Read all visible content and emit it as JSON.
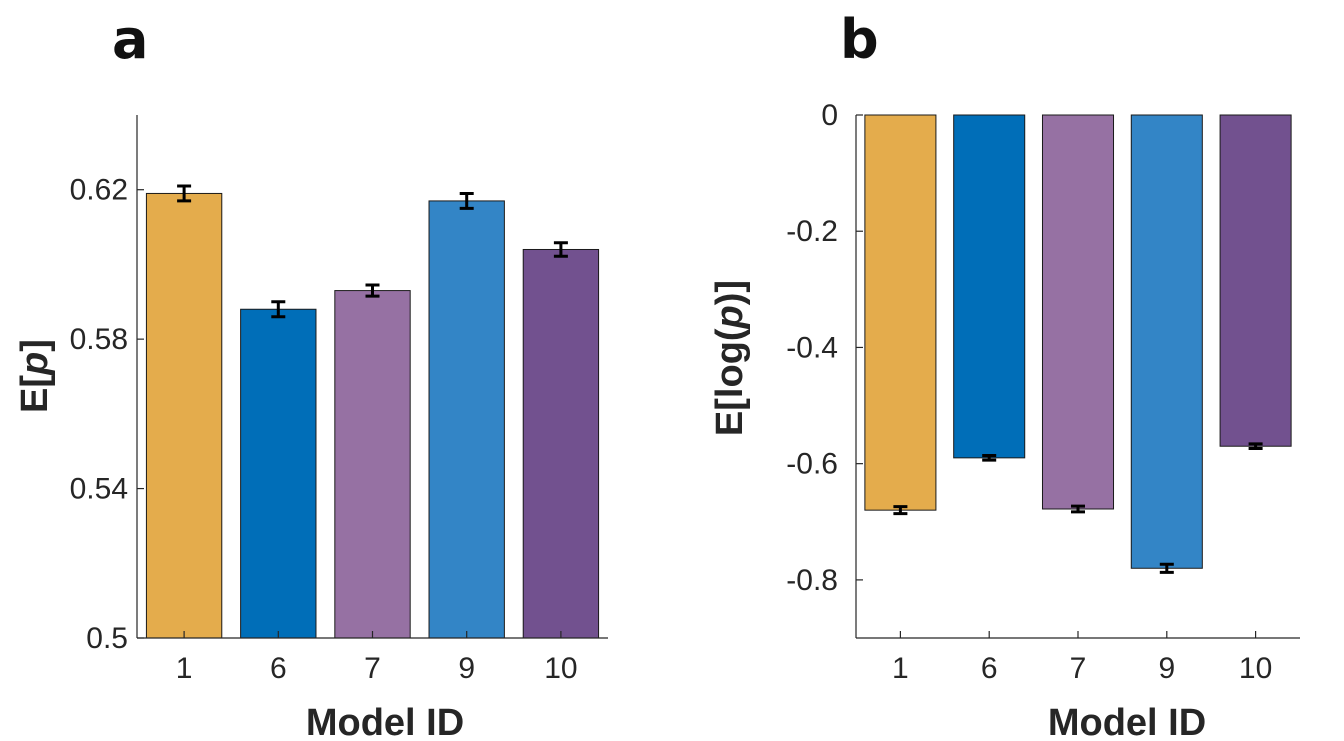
{
  "chart_data": [
    {
      "type": "bar",
      "panel_label": "a",
      "categories": [
        "1",
        "6",
        "7",
        "9",
        "10"
      ],
      "values": [
        0.619,
        0.588,
        0.593,
        0.617,
        0.604
      ],
      "errors": [
        0.002,
        0.002,
        0.0015,
        0.002,
        0.0018
      ],
      "bar_colors": [
        "#E4AC4C",
        "#006EB8",
        "#9671A3",
        "#3385C6",
        "#72518F"
      ],
      "xlabel": "Model ID",
      "ylabel": "E[p]",
      "ylabel_parts": [
        "E[",
        "p",
        "]"
      ],
      "ylim": [
        0.5,
        0.64
      ],
      "yticks": [
        "0.5",
        "0.54",
        "0.58",
        "0.62"
      ],
      "grid": false
    },
    {
      "type": "bar",
      "panel_label": "b",
      "categories": [
        "1",
        "6",
        "7",
        "9",
        "10"
      ],
      "values": [
        -0.68,
        -0.59,
        -0.678,
        -0.78,
        -0.57
      ],
      "errors": [
        0.006,
        0.004,
        0.005,
        0.007,
        0.004
      ],
      "bar_colors": [
        "#E4AC4C",
        "#006EB8",
        "#9671A3",
        "#3385C6",
        "#72518F"
      ],
      "xlabel": "Model ID",
      "ylabel": "E[log(p)]",
      "ylabel_parts": [
        "E[log(",
        "p",
        ")]"
      ],
      "ylim": [
        -0.9,
        0
      ],
      "yticks": [
        "0",
        "-0.2",
        "-0.4",
        "-0.6",
        "-0.8"
      ],
      "grid": false
    }
  ]
}
